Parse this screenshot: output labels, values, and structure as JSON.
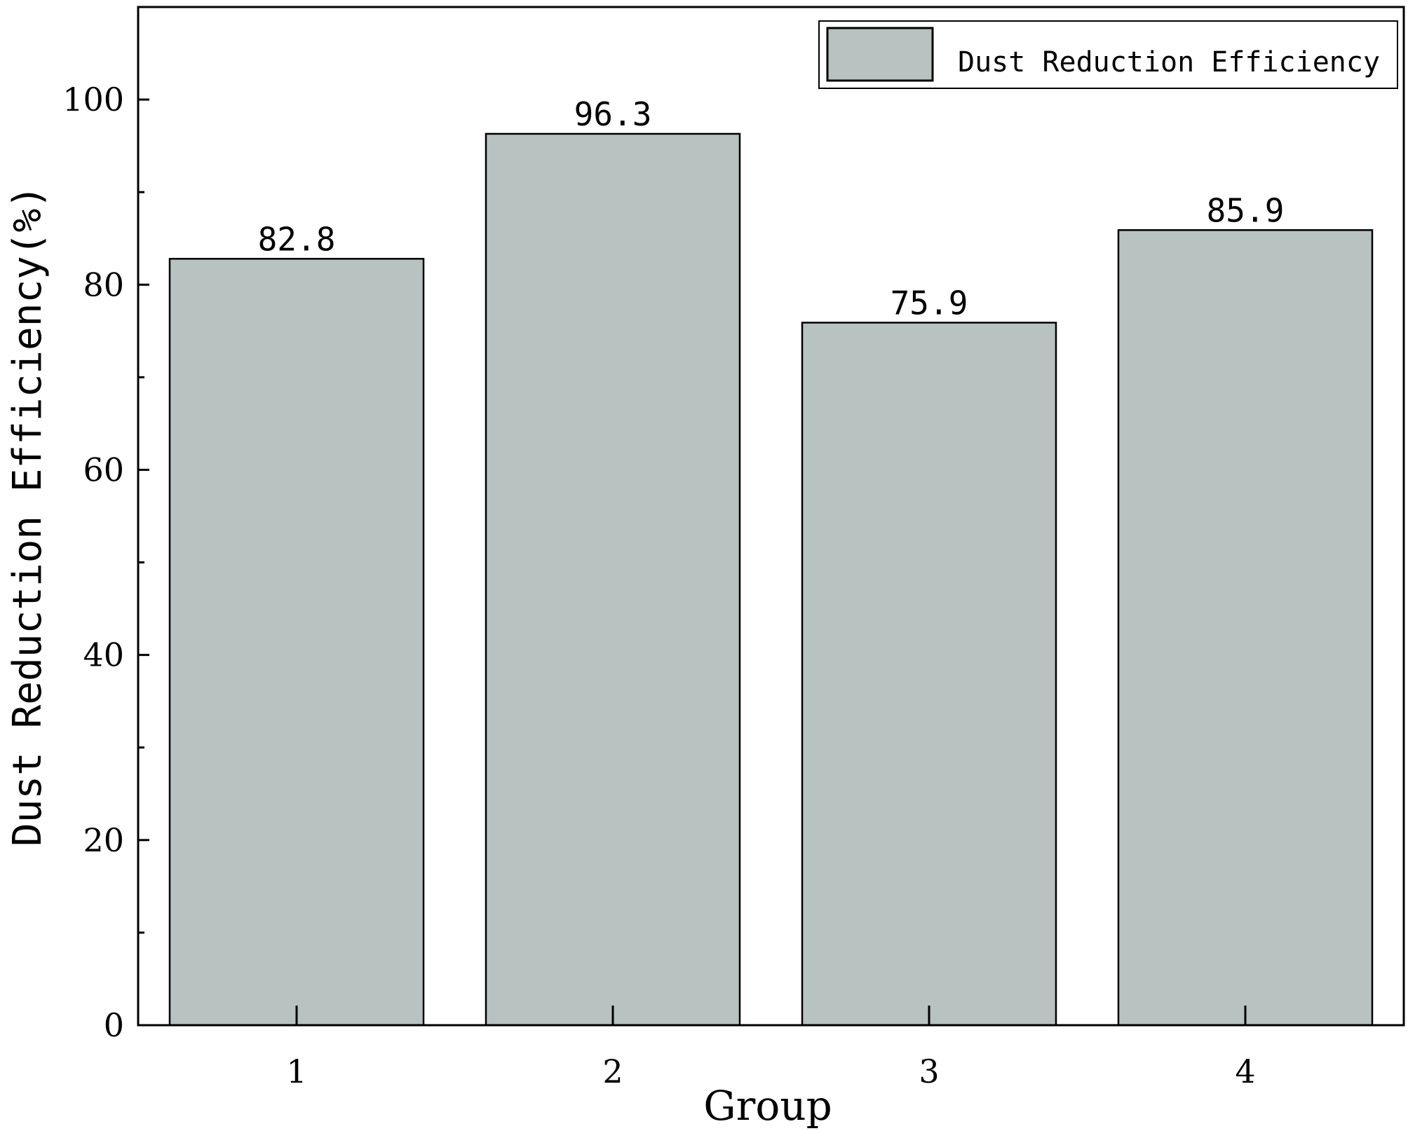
{
  "chart_data": {
    "type": "bar",
    "categories": [
      "1",
      "2",
      "3",
      "4"
    ],
    "series": [
      {
        "name": "Dust Reduction Efficiency",
        "values": [
          82.8,
          96.3,
          75.9,
          85.9
        ]
      }
    ],
    "data_labels": [
      "82.8",
      "96.3",
      "75.9",
      "85.9"
    ],
    "xlabel": "Group",
    "ylabel": "Dust Reduction Efficiency(%)",
    "ylim": [
      0,
      110
    ],
    "yticks": [
      0,
      20,
      40,
      60,
      80,
      100
    ],
    "yticks_minor": [
      10,
      30,
      50,
      70,
      90
    ],
    "legend_position": "top-right",
    "grid": false,
    "colors": {
      "bar": "#b7c2c1",
      "edge": "#000000"
    }
  }
}
